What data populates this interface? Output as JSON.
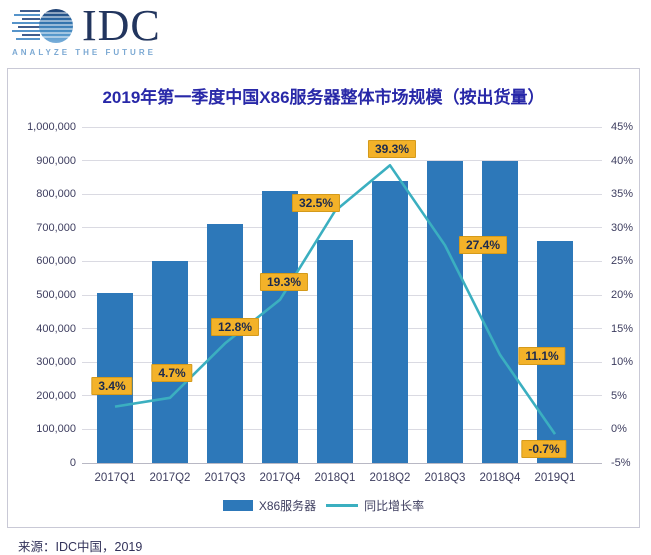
{
  "logo": {
    "text": "IDC",
    "tagline": "ANALYZE THE FUTURE"
  },
  "source": "来源：IDC中国，2019",
  "chart_data": {
    "type": "bar",
    "subtype": "bar+line combo",
    "title": "2019年第一季度中国X86服务器整体市场规模（按出货量）",
    "categories": [
      "2017Q1",
      "2017Q2",
      "2017Q3",
      "2017Q4",
      "2018Q1",
      "2018Q2",
      "2018Q3",
      "2018Q4",
      "2019Q1"
    ],
    "series": [
      {
        "name": "X86服务器",
        "type": "bar",
        "axis": "left",
        "color": "#2d78b9",
        "values": [
          505000,
          600000,
          710000,
          810000,
          665000,
          840000,
          900000,
          900000,
          660000
        ]
      },
      {
        "name": "同比增长率",
        "type": "line",
        "axis": "right",
        "color": "#3bafc0",
        "values": [
          3.4,
          4.7,
          12.8,
          19.3,
          32.5,
          39.3,
          27.4,
          11.1,
          -0.7
        ],
        "labels": [
          "3.4%",
          "4.7%",
          "12.8%",
          "19.3%",
          "32.5%",
          "39.3%",
          "27.4%",
          "11.1%",
          "-0.7%"
        ]
      }
    ],
    "left_axis": {
      "min": 0,
      "max": 1000000,
      "ticks": [
        "1,000,000",
        "900,000",
        "800,000",
        "700,000",
        "600,000",
        "500,000",
        "400,000",
        "300,000",
        "200,000",
        "100,000",
        "0"
      ]
    },
    "right_axis": {
      "min": -5,
      "max": 45,
      "ticks": [
        "45%",
        "40%",
        "35%",
        "30%",
        "25%",
        "20%",
        "15%",
        "10%",
        "5%",
        "0%",
        "-5%"
      ]
    },
    "grid": true,
    "legend_position": "bottom",
    "label_style": {
      "bg": "#f3b229",
      "border": "#d49a1b",
      "text_color": "#1c2a4e"
    }
  }
}
